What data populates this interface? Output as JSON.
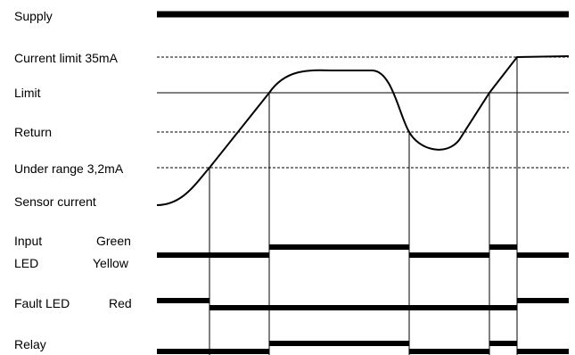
{
  "labels": {
    "supply": "Supply",
    "current_limit": "Current limit 35mA",
    "limit": "Limit",
    "return": "Return",
    "under_range": "Under range 3,2mA",
    "sensor_current": "Sensor current",
    "input": "Input",
    "green": "Green",
    "led": "LED",
    "yellow": "Yellow",
    "fault_led": "Fault LED",
    "red": "Red",
    "relay": "Relay"
  },
  "colors": {
    "ink": "#000000",
    "background": "#ffffff"
  }
}
